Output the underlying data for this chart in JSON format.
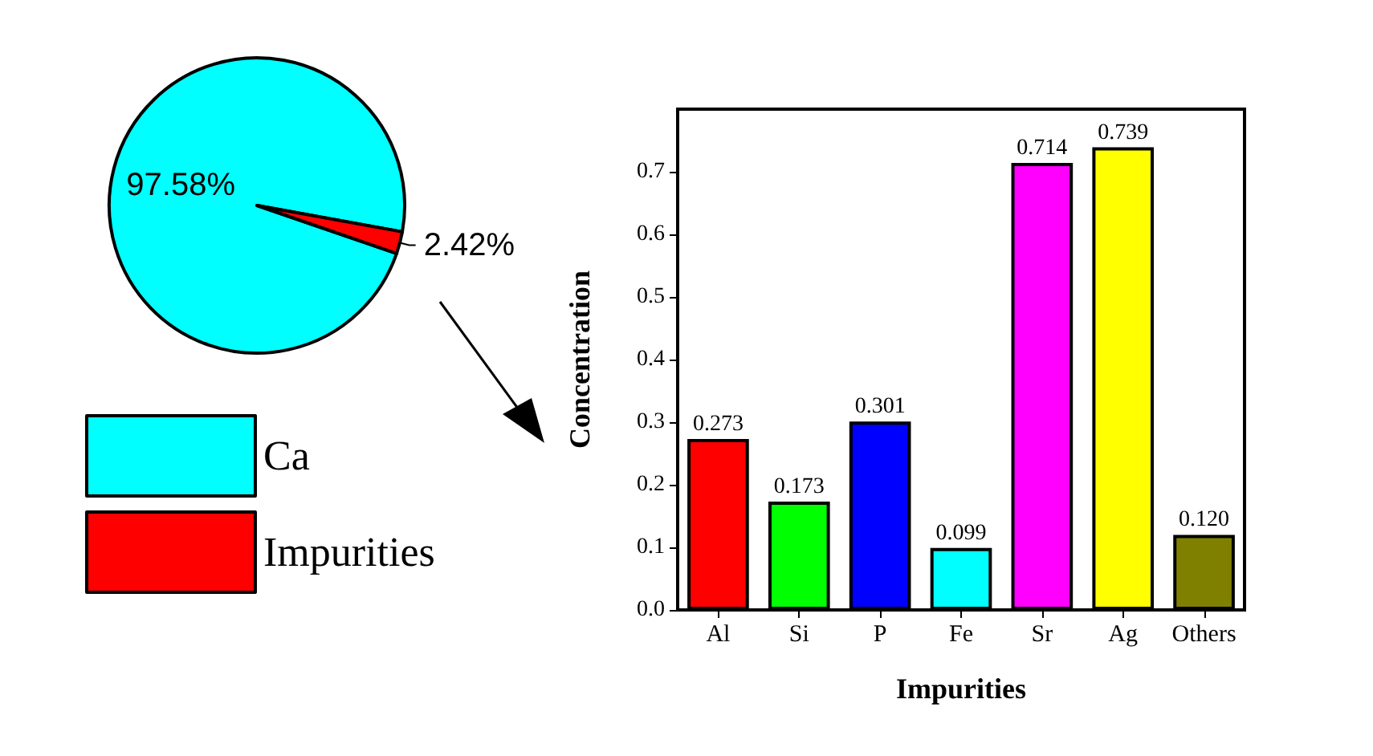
{
  "chart_data": [
    {
      "type": "pie",
      "categories": [
        "Ca",
        "Impurities"
      ],
      "values": [
        97.58,
        2.42
      ],
      "colors": [
        "#00ffff",
        "#ff0000"
      ],
      "legend": "bottom left",
      "value_labels": [
        "97.58%",
        "2.42%"
      ]
    },
    {
      "type": "bar",
      "categories": [
        "Al",
        "Si",
        "P",
        "Fe",
        "Sr",
        "Ag",
        "Others"
      ],
      "values": [
        0.273,
        0.173,
        0.301,
        0.099,
        0.714,
        0.739,
        0.12
      ],
      "colors": [
        "#ff0000",
        "#00ff00",
        "#0000ff",
        "#00ffff",
        "#ff00ff",
        "#ffff00",
        "#808000"
      ],
      "value_labels": [
        "0.273",
        "0.173",
        "0.301",
        "0.099",
        "0.714",
        "0.739",
        "0.120"
      ],
      "xlabel": "Impurities",
      "ylabel": "Concentration",
      "ylim": [
        0,
        0.8
      ],
      "yticks": [
        {
          "value": 0,
          "label": "0.0"
        },
        {
          "value": 0.1,
          "label": "0.1"
        },
        {
          "value": 0.2,
          "label": "0.2"
        },
        {
          "value": 0.3,
          "label": "0.3"
        },
        {
          "value": 0.4,
          "label": "0.4"
        },
        {
          "value": 0.5,
          "label": "0.5"
        },
        {
          "value": 0.6,
          "label": "0.6"
        },
        {
          "value": 0.7,
          "label": "0.7"
        }
      ]
    }
  ]
}
